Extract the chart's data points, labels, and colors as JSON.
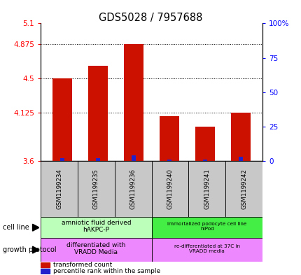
{
  "title": "GDS5028 / 7957688",
  "samples": [
    "GSM1199234",
    "GSM1199235",
    "GSM1199236",
    "GSM1199240",
    "GSM1199241",
    "GSM1199242"
  ],
  "red_values": [
    4.5,
    4.64,
    4.875,
    4.09,
    3.97,
    4.125
  ],
  "blue_values": [
    2,
    2,
    4,
    1,
    1,
    3
  ],
  "ylim_left": [
    3.6,
    5.1
  ],
  "ylim_right": [
    0,
    100
  ],
  "yticks_left": [
    3.6,
    4.125,
    4.5,
    4.875,
    5.1
  ],
  "yticks_right": [
    0,
    25,
    50,
    75,
    100
  ],
  "ytick_labels_left": [
    "3.6",
    "4.125",
    "4.5",
    "4.875",
    "5.1"
  ],
  "ytick_labels_right": [
    "0",
    "25",
    "50",
    "75",
    "100%"
  ],
  "hgrid_values": [
    4.875,
    4.5,
    4.125
  ],
  "cell_line_label1": "amniotic fluid derived\nhAKPC-P",
  "cell_line_label2": "immortalized podocyte cell line\nhIPod",
  "cell_line_color1": "#bbffbb",
  "cell_line_color2": "#44ee44",
  "growth_protocol_label1": "differentiated with\nVRADD Media",
  "growth_protocol_label2": "re-differentiated at 37C in\nVRADD media",
  "growth_protocol_color": "#ee88ff",
  "group1_count": 3,
  "group2_count": 3,
  "legend_red": "transformed count",
  "legend_blue": "percentile rank within the sample",
  "cell_line_label": "cell line",
  "growth_protocol_label": "growth protocol",
  "bar_width": 0.55,
  "sample_bg_color": "#c8c8c8",
  "red_color": "#cc1100",
  "blue_color": "#2222cc"
}
